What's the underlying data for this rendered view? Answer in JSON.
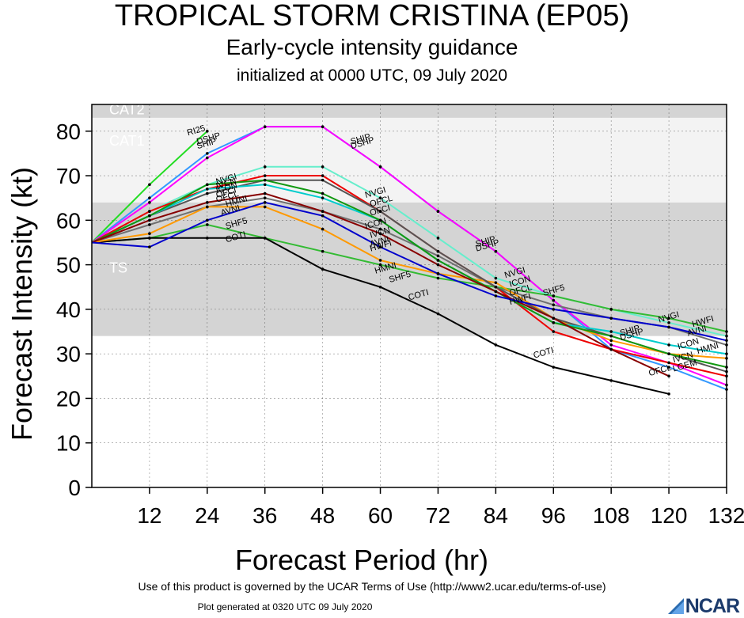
{
  "title": "TROPICAL STORM CRISTINA (EP05)",
  "subtitle": "Early-cycle intensity guidance",
  "initialized": "initialized at 0000 UTC, 09 July 2020",
  "footer_terms": "Use of this product is governed by the UCAR Terms of Use (http://www2.ucar.edu/terms-of-use)",
  "footer_generated": "Plot generated at 0320 UTC   09 July 2020",
  "logo_text": "NCAR",
  "chart_data": {
    "type": "line",
    "title": "TROPICAL STORM CRISTINA (EP05)",
    "xlabel": "Forecast Period (hr)",
    "ylabel": "Forecast Intensity (kt)",
    "xlim": [
      0,
      132
    ],
    "ylim": [
      0,
      86
    ],
    "xticks": [
      12,
      24,
      36,
      48,
      60,
      72,
      84,
      96,
      108,
      120,
      132
    ],
    "yticks": [
      0,
      10,
      20,
      30,
      40,
      50,
      60,
      70,
      80
    ],
    "grid": true,
    "bands": [
      {
        "label": "TS",
        "from": 34,
        "to": 64,
        "color": "#d4d4d4"
      },
      {
        "label": "CAT1",
        "from": 64,
        "to": 83,
        "color": "#f3f3f3"
      },
      {
        "label": "CAT2",
        "from": 83,
        "to": 86,
        "color": "#d4d4d4"
      }
    ],
    "series": [
      {
        "name": "RI25",
        "color": "#22dd22",
        "x": [
          0,
          12,
          24
        ],
        "values": [
          55,
          68,
          80
        ]
      },
      {
        "name": "DSHP",
        "color": "#3399ff",
        "x": [
          0,
          12,
          24,
          36,
          48,
          60,
          72,
          84,
          96,
          108,
          120,
          132
        ],
        "values": [
          55,
          65,
          75,
          81,
          81,
          72,
          62,
          53,
          42,
          31,
          27,
          22
        ]
      },
      {
        "name": "SHIP",
        "color": "#ff00ff",
        "x": [
          0,
          12,
          24,
          36,
          48,
          60,
          72,
          84,
          96,
          108,
          120,
          132
        ],
        "values": [
          55,
          64,
          74,
          81,
          81,
          72,
          62,
          53,
          42,
          32,
          28,
          23
        ]
      },
      {
        "name": "NVGI",
        "color": "#66eecc",
        "x": [
          0,
          12,
          24,
          36,
          48,
          60,
          72,
          84,
          96,
          108,
          120,
          132
        ],
        "values": [
          55,
          62,
          68,
          72,
          72,
          65,
          56,
          47,
          43,
          40,
          37,
          34
        ]
      },
      {
        "name": "AVNI",
        "color": "#707070",
        "x": [
          0,
          12,
          24,
          36,
          48,
          60,
          72,
          84,
          96,
          108,
          120,
          132
        ],
        "values": [
          55,
          59,
          63,
          65,
          62,
          58,
          52,
          45,
          41,
          38,
          36,
          32
        ]
      },
      {
        "name": "SHF5",
        "color": "#33bb33",
        "x": [
          0,
          12,
          24,
          36,
          48,
          60,
          72,
          84,
          96,
          108,
          120,
          132
        ],
        "values": [
          55,
          56,
          59,
          56,
          53,
          50,
          47,
          45,
          43,
          40,
          38,
          35
        ]
      },
      {
        "name": "COTI",
        "color": "#000000",
        "x": [
          0,
          12,
          24,
          36,
          48,
          60,
          72,
          84,
          96,
          108,
          120
        ],
        "values": [
          55,
          56,
          56,
          56,
          49,
          45,
          39,
          32,
          27,
          24,
          21
        ]
      },
      {
        "name": "HMNI",
        "color": "#ff9900",
        "x": [
          0,
          12,
          24,
          36,
          48,
          60,
          72,
          84,
          96,
          108,
          120,
          132
        ],
        "values": [
          55,
          57,
          63,
          63,
          58,
          51,
          48,
          46,
          38,
          33,
          30,
          29
        ]
      },
      {
        "name": "OFCL",
        "color": "#ee0000",
        "x": [
          0,
          12,
          24,
          36,
          48,
          60,
          72,
          84,
          96,
          108,
          120,
          132
        ],
        "values": [
          55,
          62,
          67,
          70,
          70,
          62,
          53,
          45,
          35,
          31,
          28,
          25
        ]
      },
      {
        "name": "OFCI",
        "color": "#555555",
        "x": [
          0,
          12,
          24,
          36,
          48,
          60,
          72,
          84,
          96,
          108,
          120,
          132
        ],
        "values": [
          55,
          61,
          66,
          69,
          69,
          62,
          53,
          45,
          38,
          34,
          30,
          26
        ]
      },
      {
        "name": "IVCN",
        "color": "#00cccc",
        "x": [
          0,
          12,
          24,
          36,
          48,
          60,
          72,
          84,
          96,
          108,
          120,
          132
        ],
        "values": [
          55,
          61,
          67,
          68,
          65,
          60,
          51,
          44,
          37,
          35,
          32,
          30
        ]
      },
      {
        "name": "ICON",
        "color": "#119911",
        "x": [
          0,
          12,
          24,
          36,
          48,
          60,
          72,
          84,
          96,
          108,
          120,
          132
        ],
        "values": [
          55,
          61,
          68,
          69,
          66,
          60,
          51,
          44,
          37,
          34,
          30,
          27
        ]
      },
      {
        "name": "LGEM",
        "color": "#880000",
        "x": [
          0,
          12,
          24,
          36,
          48,
          60,
          72,
          84,
          96,
          108,
          120
        ],
        "values": [
          55,
          60,
          64,
          66,
          62,
          57,
          50,
          44,
          38,
          31,
          25
        ]
      },
      {
        "name": "HWFI",
        "color": "#0000cc",
        "x": [
          0,
          12,
          24,
          36,
          48,
          60,
          72,
          84,
          96,
          108,
          120,
          132
        ],
        "values": [
          55,
          54,
          60,
          64,
          61,
          54,
          48,
          43,
          40,
          38,
          36,
          33
        ]
      }
    ],
    "labels": [
      {
        "text": "RI25",
        "x": 20,
        "y": 79
      },
      {
        "text": "DSHP",
        "x": 22,
        "y": 77
      },
      {
        "text": "SHIP",
        "x": 22,
        "y": 76
      },
      {
        "text": "NVGI",
        "x": 26,
        "y": 68
      },
      {
        "text": "IVCN",
        "x": 26,
        "y": 67
      },
      {
        "text": "ICON",
        "x": 26,
        "y": 66
      },
      {
        "text": "OFCI",
        "x": 26,
        "y": 65
      },
      {
        "text": "OFCL",
        "x": 26,
        "y": 64
      },
      {
        "text": "HMNI",
        "x": 28,
        "y": 63
      },
      {
        "text": "AVNI",
        "x": 27,
        "y": 61
      },
      {
        "text": "SHF5",
        "x": 28,
        "y": 58
      },
      {
        "text": "COTI",
        "x": 28,
        "y": 55
      },
      {
        "text": "SHIP",
        "x": 54,
        "y": 77
      },
      {
        "text": "DSHP",
        "x": 54,
        "y": 76
      },
      {
        "text": "NVGI",
        "x": 57,
        "y": 65
      },
      {
        "text": "OFCL",
        "x": 58,
        "y": 63
      },
      {
        "text": "OFCI",
        "x": 58,
        "y": 61
      },
      {
        "text": "ICON",
        "x": 57,
        "y": 58
      },
      {
        "text": "IVCN",
        "x": 58,
        "y": 56
      },
      {
        "text": "AVNI",
        "x": 58,
        "y": 54
      },
      {
        "text": "HWFI",
        "x": 58,
        "y": 53
      },
      {
        "text": "HMNI",
        "x": 59,
        "y": 48
      },
      {
        "text": "SHF5",
        "x": 62,
        "y": 46
      },
      {
        "text": "COTI",
        "x": 66,
        "y": 42
      },
      {
        "text": "SHIP",
        "x": 80,
        "y": 54
      },
      {
        "text": "DSHP",
        "x": 80,
        "y": 53
      },
      {
        "text": "NVGI",
        "x": 86,
        "y": 47
      },
      {
        "text": "ICON",
        "x": 87,
        "y": 45
      },
      {
        "text": "OFCL",
        "x": 87,
        "y": 43
      },
      {
        "text": "HWFI",
        "x": 87,
        "y": 41
      },
      {
        "text": "SHF5",
        "x": 94,
        "y": 43
      },
      {
        "text": "COTI",
        "x": 92,
        "y": 29
      },
      {
        "text": "SHIP",
        "x": 110,
        "y": 34
      },
      {
        "text": "DSHP",
        "x": 110,
        "y": 33
      },
      {
        "text": "NVGI",
        "x": 118,
        "y": 37
      },
      {
        "text": "HWFI",
        "x": 125,
        "y": 36
      },
      {
        "text": "AVNI",
        "x": 124,
        "y": 34
      },
      {
        "text": "ICON",
        "x": 122,
        "y": 31
      },
      {
        "text": "HMNI",
        "x": 126,
        "y": 30
      },
      {
        "text": "IVCN",
        "x": 121,
        "y": 28
      },
      {
        "text": "LGEM",
        "x": 121,
        "y": 26
      },
      {
        "text": "OFCL",
        "x": 116,
        "y": 25
      }
    ]
  }
}
